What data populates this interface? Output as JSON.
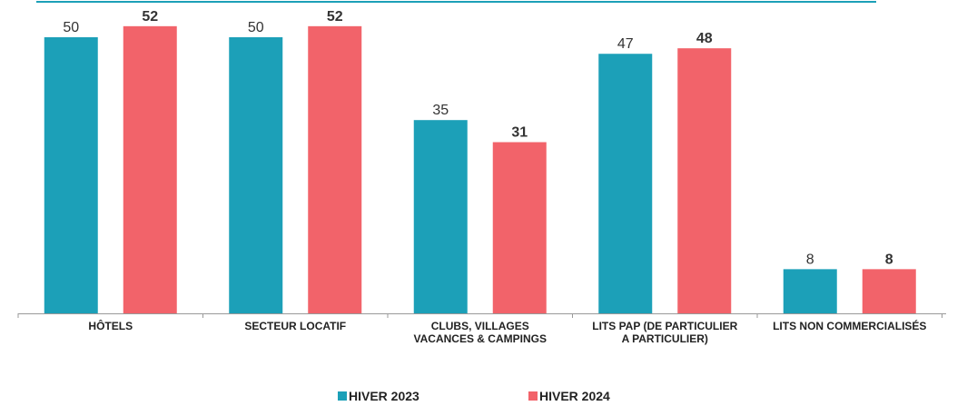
{
  "chart_data": {
    "type": "bar",
    "categories": [
      "HÔTELS",
      "SECTEUR LOCATIF",
      "CLUBS, VILLAGES\nVACANCES & CAMPINGS",
      "LITS PAP (DE PARTICULIER\nA PARTICULIER)",
      "LITS NON COMMERCIALISÉS"
    ],
    "series": [
      {
        "name": "HIVER 2023",
        "color": "#1ca0b8",
        "values": [
          50,
          50,
          35,
          47,
          8
        ]
      },
      {
        "name": "HIVER 2024",
        "color": "#f2636a",
        "values": [
          52,
          52,
          31,
          48,
          8
        ]
      }
    ]
  }
}
